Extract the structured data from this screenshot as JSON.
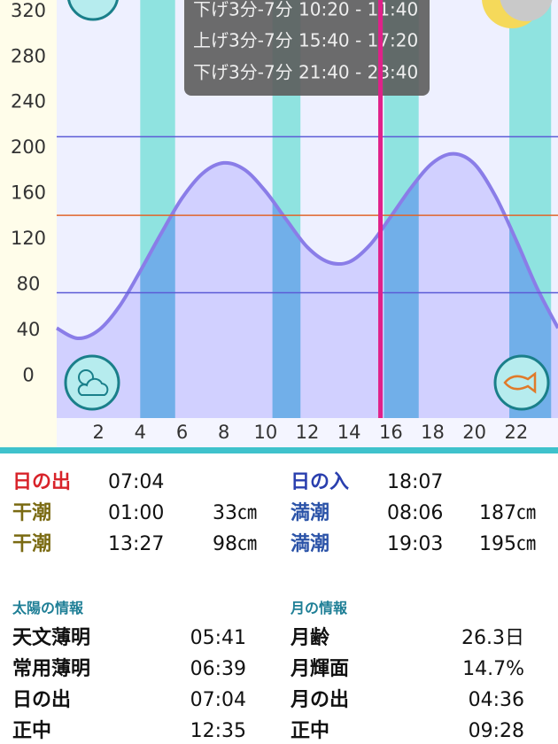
{
  "chart_data": {
    "type": "line",
    "x": [
      0,
      1,
      2,
      3,
      4,
      5,
      6,
      7,
      8,
      9,
      10,
      11,
      12,
      13,
      14,
      15,
      16,
      17,
      18,
      19,
      20,
      21,
      22,
      23,
      24
    ],
    "series": [
      {
        "color": "#8a7de8",
        "values": [
          42,
          33,
          40,
          61,
          92,
          125,
          156,
          178,
          187,
          181,
          162,
          137,
          113,
          100,
          100,
          115,
          140,
          166,
          187,
          195,
          186,
          158,
          119,
          77,
          42
        ]
      }
    ],
    "xlim": [
      0,
      24
    ],
    "ylim": [
      -37,
      330
    ],
    "xticks": [
      2,
      4,
      6,
      8,
      10,
      12,
      14,
      16,
      18,
      20,
      22
    ],
    "yticks": [
      0,
      40,
      80,
      120,
      160,
      200,
      240,
      280,
      320
    ],
    "bands": [
      [
        4,
        5.67
      ],
      [
        10.33,
        11.67
      ],
      [
        15.67,
        17.33
      ],
      [
        21.67,
        23.67
      ]
    ],
    "reference_lines": [
      {
        "value": 210,
        "color": "#5b5bd6"
      },
      {
        "value": 141,
        "color": "#e0652a"
      },
      {
        "value": 73,
        "color": "#5b5bd6"
      }
    ],
    "current_time": 15.5,
    "grid": true
  },
  "tooltip": {
    "lines": [
      "下げ3分-7分 10:20 - 11:40",
      "上げ3分-7分 15:40 - 17:20",
      "下げ3分-7分 21:40 - 23:40"
    ]
  },
  "sun_times": {
    "sunrise_label": "日の出",
    "sunrise": "07:04",
    "sunset_label": "日の入",
    "sunset": "18:07"
  },
  "tides": [
    {
      "label": "干潮",
      "time": "01:00",
      "height": "33㎝"
    },
    {
      "label": "満潮",
      "time": "08:06",
      "height": "187㎝"
    },
    {
      "label": "干潮",
      "time": "13:27",
      "height": "98㎝"
    },
    {
      "label": "満潮",
      "time": "19:03",
      "height": "195㎝"
    }
  ],
  "sun_info": {
    "title": "太陽の情報",
    "rows": [
      [
        "天文薄明",
        "05:41"
      ],
      [
        "常用薄明",
        "06:39"
      ],
      [
        "日の出",
        "07:04"
      ],
      [
        "正中",
        "12:35"
      ]
    ]
  },
  "moon_info": {
    "title": "月の情報",
    "rows": [
      [
        "月齢",
        "26.3日"
      ],
      [
        "月輝面",
        "14.7%"
      ],
      [
        "月の出",
        "04:36"
      ],
      [
        "正中",
        "09:28"
      ]
    ]
  }
}
